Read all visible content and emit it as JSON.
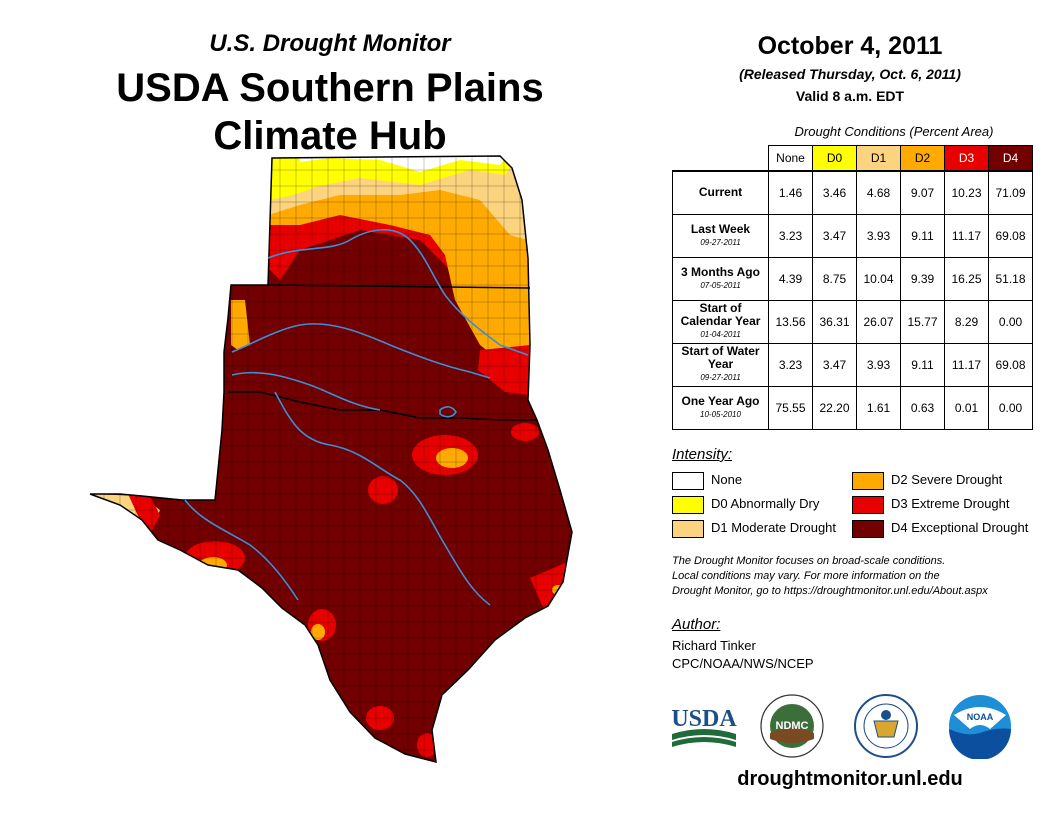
{
  "header": {
    "subtitle": "U.S. Drought Monitor",
    "title_line1": "USDA Southern Plains",
    "title_line2": "Climate Hub"
  },
  "info": {
    "date": "October 4, 2011",
    "released": "(Released Thursday, Oct. 6, 2011)",
    "valid": "Valid 8 a.m. EDT"
  },
  "table": {
    "caption": "Drought Conditions (Percent Area)",
    "columns": [
      {
        "label": "None",
        "color": "#ffffff"
      },
      {
        "label": "D0",
        "color": "#ffff00"
      },
      {
        "label": "D1",
        "color": "#fcd37f"
      },
      {
        "label": "D2",
        "color": "#ffaa00"
      },
      {
        "label": "D3",
        "color": "#e60000"
      },
      {
        "label": "D4",
        "color": "#730000"
      }
    ],
    "rows": [
      {
        "label": "Current",
        "date": "",
        "values": [
          "1.46",
          "3.46",
          "4.68",
          "9.07",
          "10.23",
          "71.09"
        ]
      },
      {
        "label": "Last Week",
        "date": "09-27-2011",
        "values": [
          "3.23",
          "3.47",
          "3.93",
          "9.11",
          "11.17",
          "69.08"
        ]
      },
      {
        "label": "3 Months Ago",
        "date": "07-05-2011",
        "values": [
          "4.39",
          "8.75",
          "10.04",
          "9.39",
          "16.25",
          "51.18"
        ]
      },
      {
        "label": "Start of Calendar Year",
        "date": "01-04-2011",
        "values": [
          "13.56",
          "36.31",
          "26.07",
          "15.77",
          "8.29",
          "0.00"
        ]
      },
      {
        "label": "Start of Water Year",
        "date": "09-27-2011",
        "values": [
          "3.23",
          "3.47",
          "3.93",
          "9.11",
          "11.17",
          "69.08"
        ]
      },
      {
        "label": "One Year Ago",
        "date": "10-05-2010",
        "values": [
          "75.55",
          "22.20",
          "1.61",
          "0.63",
          "0.01",
          "0.00"
        ]
      }
    ]
  },
  "legend": {
    "title": "Intensity:",
    "items": [
      {
        "label": "None",
        "color": "#ffffff"
      },
      {
        "label": "D0 Abnormally Dry",
        "color": "#ffff00"
      },
      {
        "label": "D1 Moderate Drought",
        "color": "#fcd37f"
      },
      {
        "label": "D2 Severe Drought",
        "color": "#ffaa00"
      },
      {
        "label": "D3 Extreme Drought",
        "color": "#e60000"
      },
      {
        "label": "D4 Exceptional Drought",
        "color": "#730000"
      }
    ]
  },
  "note": {
    "line1": "The Drought Monitor focuses on broad-scale conditions.",
    "line2": "Local conditions may vary. For more information on the",
    "line3": "Drought Monitor, go to https://droughtmonitor.unl.edu/About.aspx"
  },
  "author": {
    "heading": "Author:",
    "name": "Richard Tinker",
    "org": "CPC/NOAA/NWS/NCEP"
  },
  "logos": {
    "usda": "USDA",
    "ndmc": "NDMC",
    "noaa": "NOAA"
  },
  "website": "droughtmonitor.unl.edu"
}
